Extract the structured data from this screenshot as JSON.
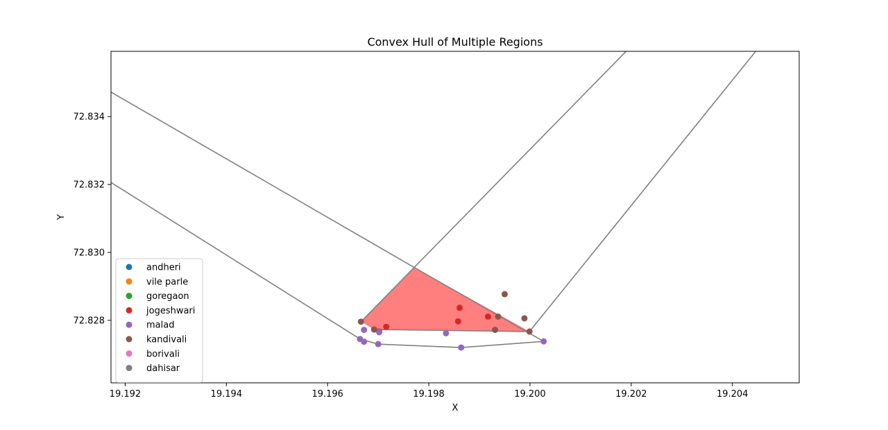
{
  "chart_data": {
    "type": "scatter",
    "title": "Convex Hull of Multiple Regions",
    "xlabel": "X",
    "ylabel": "Y",
    "xlim": [
      19.19172,
      19.20532
    ],
    "ylim": [
      72.82616,
      72.83592
    ],
    "xticks": [
      19.192,
      19.194,
      19.196,
      19.198,
      19.2,
      19.202,
      19.204
    ],
    "xtick_labels": [
      "19.192",
      "19.194",
      "19.196",
      "19.198",
      "19.200",
      "19.202",
      "19.204"
    ],
    "yticks": [
      72.828,
      72.83,
      72.832,
      72.834
    ],
    "ytick_labels": [
      "72.828",
      "72.830",
      "72.832",
      "72.834"
    ],
    "grid": false,
    "legend_position": "lower-left",
    "series": [
      {
        "name": "andheri",
        "color": "#1f77b4",
        "points": []
      },
      {
        "name": "vile parle",
        "color": "#ff7f0e",
        "points": []
      },
      {
        "name": "goregaon",
        "color": "#2ca02c",
        "points": []
      },
      {
        "name": "jogeshwari",
        "color": "#d62728",
        "points": [
          [
            19.19917,
            72.82811
          ],
          [
            19.19861,
            72.82837
          ],
          [
            19.19858,
            72.82797
          ],
          [
            19.19716,
            72.82781
          ],
          [
            19.19702,
            72.82767
          ],
          [
            19.19692,
            72.82773
          ]
        ]
      },
      {
        "name": "malad",
        "color": "#9467bd",
        "points": [
          [
            19.19672,
            72.82772
          ],
          [
            19.19702,
            72.82765
          ],
          [
            19.19834,
            72.82762
          ],
          [
            19.19664,
            72.82745
          ],
          [
            19.19672,
            72.82737
          ],
          [
            19.197,
            72.8273
          ],
          [
            19.19864,
            72.8272
          ],
          [
            19.20027,
            72.82738
          ]
        ]
      },
      {
        "name": "kandivali",
        "color": "#8c564b",
        "points": [
          [
            19.1995,
            72.82877
          ],
          [
            19.19989,
            72.82806
          ],
          [
            19.19937,
            72.82811
          ],
          [
            19.19931,
            72.82772
          ],
          [
            19.19999,
            72.82767
          ],
          [
            19.19666,
            72.82796
          ],
          [
            19.19692,
            72.82773
          ]
        ]
      },
      {
        "name": "borivali",
        "color": "#e377c2",
        "points": []
      },
      {
        "name": "dahisar",
        "color": "#7f7f7f",
        "points": []
      }
    ],
    "hull_fill": {
      "color": "#ff0000",
      "opacity": 0.5,
      "points": [
        [
          19.19666,
          72.82796
        ],
        [
          19.19772,
          72.82955
        ],
        [
          19.19999,
          72.82767
        ],
        [
          19.19692,
          72.82773
        ]
      ]
    },
    "hull_lines": {
      "color": "#808080",
      "lines": [
        [
          [
            19.19172,
            72.83472
          ],
          [
            19.19772,
            72.82955
          ]
        ],
        [
          [
            19.19772,
            72.82955
          ],
          [
            19.20027,
            72.82738
          ]
        ],
        [
          [
            19.19666,
            72.82796
          ],
          [
            19.2019,
            72.83592
          ]
        ],
        [
          [
            19.19999,
            72.82767
          ],
          [
            19.20446,
            72.83592
          ]
        ],
        [
          [
            19.19172,
            72.83206
          ],
          [
            19.19664,
            72.82745
          ]
        ],
        [
          [
            19.19664,
            72.82745
          ],
          [
            19.197,
            72.8273
          ],
          [
            19.19864,
            72.8272
          ],
          [
            19.20027,
            72.82738
          ]
        ],
        [
          [
            19.19692,
            72.82773
          ],
          [
            19.19999,
            72.82767
          ]
        ]
      ]
    }
  }
}
